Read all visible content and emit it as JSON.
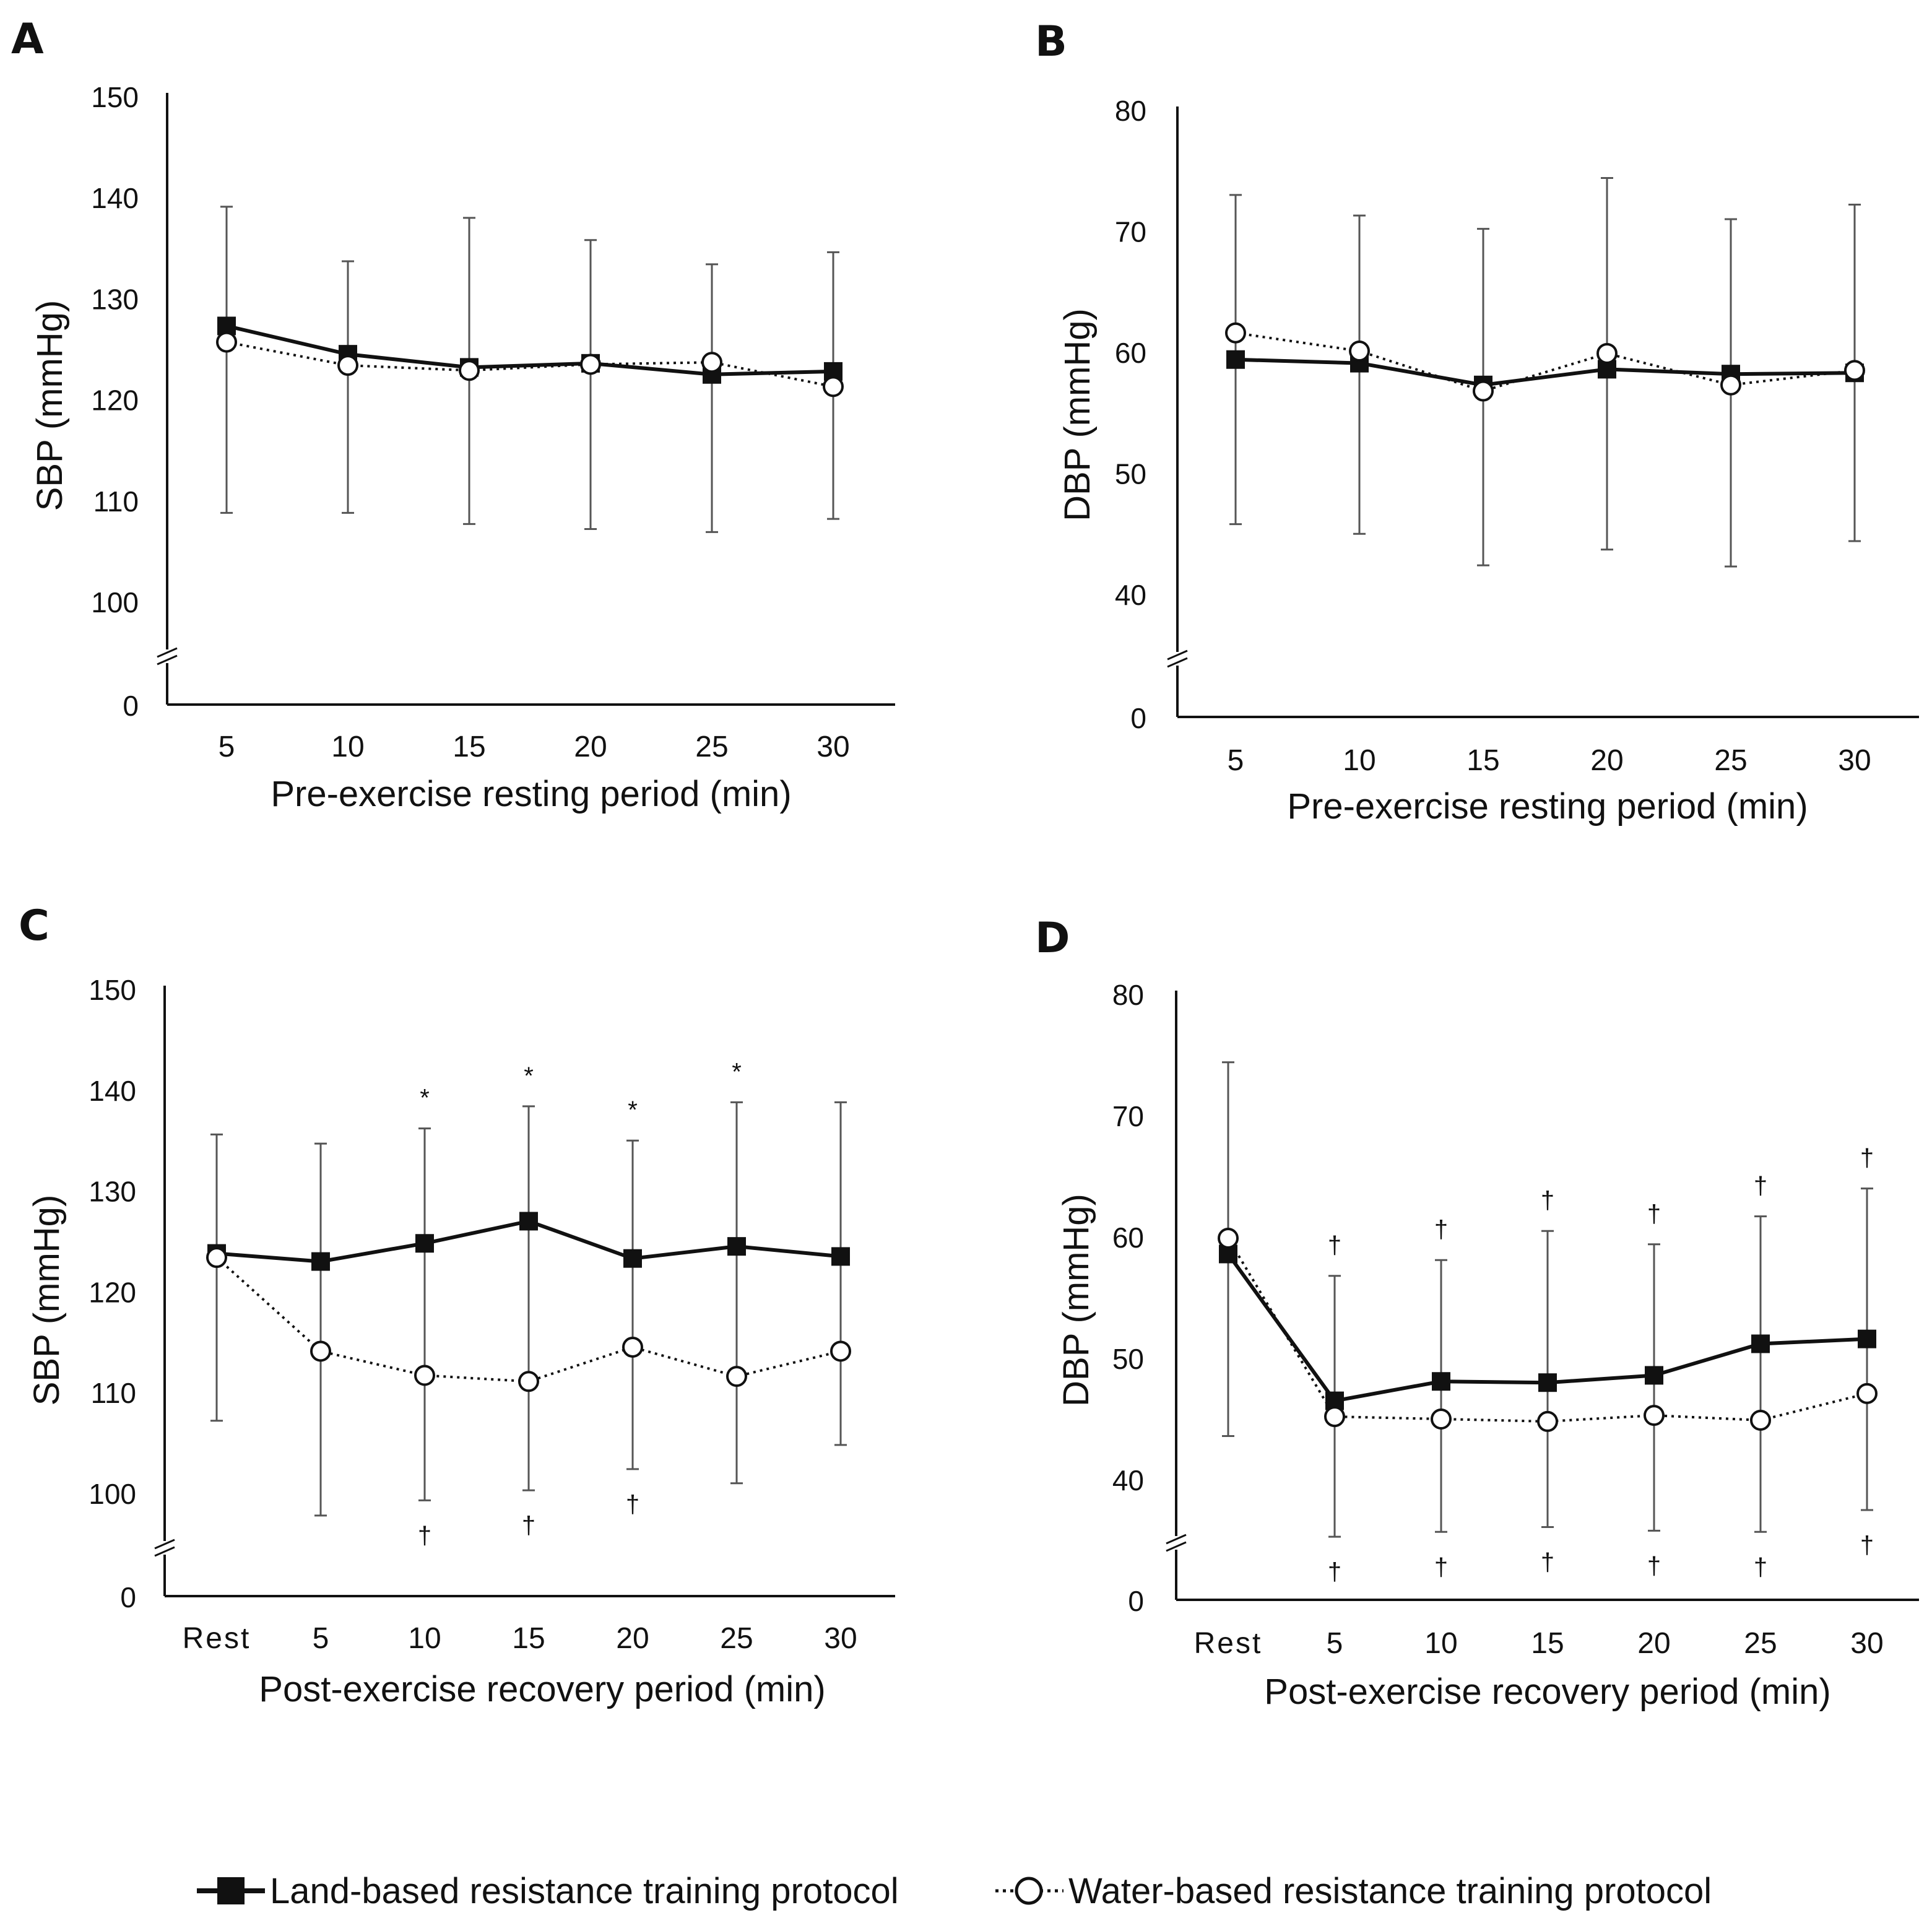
{
  "colors": {
    "axis": "#111111",
    "errorbar": "#555555",
    "land": "#111111",
    "water_fill": "#ffffff",
    "water_stroke": "#111111"
  },
  "legend": {
    "land_label": "Land-based resistance training protocol",
    "water_label": "Water-based resistance training protocol"
  },
  "chart_data": [
    {
      "panel": "A",
      "type": "line",
      "ylabel": "SBP (mmHg)",
      "xlabel": "Pre-exercise resting period (min)",
      "categories": [
        "5",
        "10",
        "15",
        "20",
        "25",
        "30"
      ],
      "ylim": [
        100,
        150
      ],
      "yticks": [
        100,
        110,
        120,
        130,
        140,
        150
      ],
      "axis_break": true,
      "axis_break_label": "0",
      "series": [
        {
          "name": "Land-based resistance training protocol",
          "values": [
            127.3,
            124.5,
            123.2,
            123.6,
            122.5,
            122.8
          ],
          "error_upper": [
            139.1,
            133.7,
            138.0,
            135.8,
            133.4,
            134.6
          ],
          "error_lower": [
            108.8,
            108.8,
            107.7,
            107.2,
            106.9,
            108.2
          ]
        },
        {
          "name": "Water-based resistance training protocol",
          "values": [
            125.7,
            123.4,
            122.9,
            123.5,
            123.7,
            121.3
          ],
          "error_upper": [],
          "error_lower": []
        }
      ],
      "annotations_above": [
        "",
        "",
        "",
        "",
        "",
        ""
      ],
      "annotations_below": [
        "",
        "",
        "",
        "",
        "",
        ""
      ]
    },
    {
      "panel": "B",
      "type": "line",
      "ylabel": "DBP (mmHg)",
      "xlabel": "Pre-exercise resting period (min)",
      "categories": [
        "5",
        "10",
        "15",
        "20",
        "25",
        "30"
      ],
      "ylim": [
        40,
        80
      ],
      "yticks": [
        40,
        50,
        60,
        70,
        80
      ],
      "axis_break": true,
      "axis_break_label": "0",
      "series": [
        {
          "name": "Land-based resistance training protocol",
          "values": [
            59.4,
            59.1,
            57.3,
            58.6,
            58.2,
            58.3
          ],
          "error_upper": [
            73.0,
            71.3,
            70.2,
            74.4,
            71.0,
            72.2
          ],
          "error_lower": [
            45.8,
            45.0,
            42.4,
            43.7,
            42.3,
            44.4
          ]
        },
        {
          "name": "Water-based resistance training protocol",
          "values": [
            61.6,
            60.1,
            56.8,
            59.9,
            57.3,
            58.5
          ],
          "error_upper": [],
          "error_lower": []
        }
      ],
      "annotations_above": [
        "",
        "",
        "",
        "",
        "",
        ""
      ],
      "annotations_below": [
        "",
        "",
        "",
        "",
        "",
        ""
      ]
    },
    {
      "panel": "C",
      "type": "line",
      "ylabel": "SBP (mmHg)",
      "xlabel": "Post-exercise recovery period (min)",
      "categories": [
        "Rest",
        "5",
        "10",
        "15",
        "20",
        "25",
        "30"
      ],
      "ylim": [
        100,
        150
      ],
      "yticks": [
        100,
        110,
        120,
        130,
        140,
        150
      ],
      "axis_break": true,
      "axis_break_label": "0",
      "series": [
        {
          "name": "Land-based resistance training protocol",
          "values": [
            123.8,
            123.0,
            124.8,
            127.0,
            123.3,
            124.5,
            123.5
          ],
          "error_upper": [
            135.6,
            134.7,
            136.2,
            138.4,
            135.0,
            138.8,
            138.8
          ],
          "error_lower": [
            107.2,
            97.8,
            99.3,
            100.3,
            102.4,
            101.0,
            104.8
          ]
        },
        {
          "name": "Water-based resistance training protocol",
          "values": [
            123.4,
            114.1,
            111.7,
            111.1,
            114.5,
            111.6,
            114.1
          ],
          "error_upper": [],
          "error_lower": []
        }
      ],
      "annotations_above": [
        "",
        "",
        "*",
        "*",
        "*",
        "*",
        ""
      ],
      "annotations_below": [
        "",
        "",
        "†",
        "†",
        "†",
        "",
        ""
      ]
    },
    {
      "panel": "D",
      "type": "line",
      "ylabel": "DBP (mmHg)",
      "xlabel": "Post-exercise recovery period (min)",
      "categories": [
        "Rest",
        "5",
        "10",
        "15",
        "20",
        "25",
        "30"
      ],
      "ylim": [
        40,
        80
      ],
      "yticks": [
        40,
        50,
        60,
        70,
        80
      ],
      "axis_break": true,
      "axis_break_label": "0",
      "series": [
        {
          "name": "Land-based resistance training protocol",
          "values": [
            58.6,
            46.5,
            48.1,
            48.0,
            48.6,
            51.2,
            51.6
          ],
          "error_upper": [
            74.4,
            56.8,
            58.1,
            60.5,
            59.4,
            61.7,
            64.0
          ],
          "error_lower": [
            43.6,
            35.3,
            35.7,
            36.1,
            35.8,
            35.7,
            37.5
          ]
        },
        {
          "name": "Water-based resistance training protocol",
          "values": [
            59.9,
            45.2,
            45.0,
            44.8,
            45.3,
            44.9,
            47.1
          ],
          "error_upper": [],
          "error_lower": []
        }
      ],
      "annotations_above": [
        "",
        "†",
        "†",
        "†",
        "†",
        "†",
        "†"
      ],
      "annotations_below": [
        "",
        "†",
        "†",
        "†",
        "†",
        "†",
        "†"
      ]
    }
  ]
}
